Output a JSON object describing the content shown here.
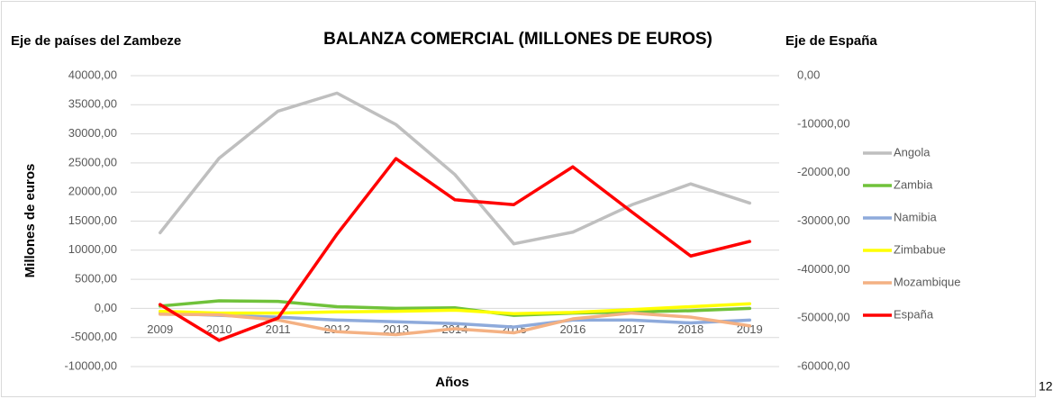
{
  "chart_data": {
    "type": "line",
    "title": "BALANZA COMERCIAL (MILLONES DE EUROS)",
    "y_axis_title_top": "Eje de países del Zambeze",
    "y2_axis_title_top": "Eje de España",
    "ylabel": "Millones de euros",
    "xlabel": "Años",
    "categories": [
      "2009",
      "2010",
      "2011",
      "2012",
      "2013",
      "2014",
      "2015",
      "2016",
      "2017",
      "2018",
      "2019"
    ],
    "ylim": [
      -10000,
      40000
    ],
    "yticks": [
      {
        "value": -10000,
        "label": "-10000,00"
      },
      {
        "value": -5000,
        "label": "-5000,00"
      },
      {
        "value": 0,
        "label": "0,00"
      },
      {
        "value": 5000,
        "label": "5000,00"
      },
      {
        "value": 10000,
        "label": "10000,00"
      },
      {
        "value": 15000,
        "label": "15000,00"
      },
      {
        "value": 20000,
        "label": "20000,00"
      },
      {
        "value": 25000,
        "label": "25000,00"
      },
      {
        "value": 30000,
        "label": "30000,00"
      },
      {
        "value": 35000,
        "label": "35000,00"
      },
      {
        "value": 40000,
        "label": "40000,00"
      }
    ],
    "y2lim": [
      -60000,
      0
    ],
    "y2ticks": [
      {
        "value": -60000,
        "label": "-60000,00"
      },
      {
        "value": -50000,
        "label": "-50000,00"
      },
      {
        "value": -40000,
        "label": "-40000,00"
      },
      {
        "value": -30000,
        "label": "-30000,00"
      },
      {
        "value": -20000,
        "label": "-20000,00"
      },
      {
        "value": -10000,
        "label": "-10000,00"
      },
      {
        "value": 0,
        "label": "0,00"
      }
    ],
    "grid": true,
    "legend": "right",
    "series": [
      {
        "name": "Angola",
        "color": "#bfbfbf",
        "values": [
          13000,
          25800,
          33900,
          37000,
          31600,
          23000,
          11100,
          13100,
          17800,
          21400,
          18100
        ]
      },
      {
        "name": "Zambia",
        "color": "#70c23a",
        "values": [
          400,
          1300,
          1200,
          300,
          0,
          100,
          -1200,
          -800,
          -600,
          -400,
          0
        ]
      },
      {
        "name": "Namibia",
        "color": "#8eaadb",
        "values": [
          -800,
          -1200,
          -1500,
          -2000,
          -2300,
          -2600,
          -3200,
          -2000,
          -2000,
          -2500,
          -2000
        ]
      },
      {
        "name": "Zimbabue",
        "color": "#ffff00",
        "values": [
          -500,
          -800,
          -800,
          -600,
          -500,
          -300,
          -900,
          -700,
          -200,
          300,
          800
        ]
      },
      {
        "name": "Mozambique",
        "color": "#f4b183",
        "values": [
          -1000,
          -1100,
          -2000,
          -4000,
          -4500,
          -3500,
          -4200,
          -1800,
          -800,
          -1500,
          -3000
        ]
      },
      {
        "name": "España",
        "color": "#ff0000",
        "axis": "y2",
        "values": [
          -47200,
          -54600,
          -50000,
          -32700,
          -17100,
          -25600,
          -26600,
          -18800,
          -28100,
          -37200,
          -34200
        ]
      }
    ]
  },
  "page_number": "12"
}
